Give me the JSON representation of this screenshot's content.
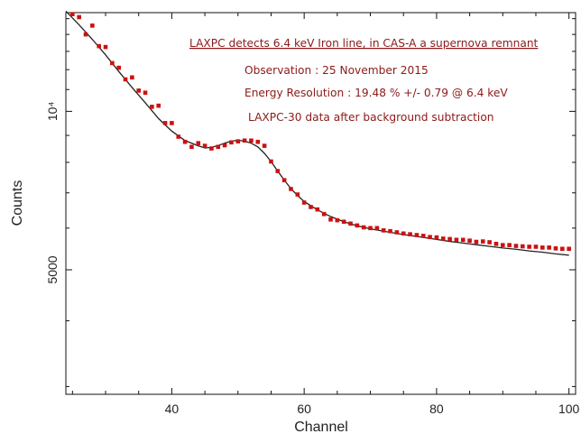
{
  "chart_data": {
    "type": "scatter",
    "xlabel": "Channel",
    "ylabel": "Counts",
    "xlim": [
      24,
      101
    ],
    "ylim": [
      2900,
      15400
    ],
    "x_ticks": [
      {
        "value": 40,
        "label": "40"
      },
      {
        "value": 60,
        "label": "60"
      },
      {
        "value": 80,
        "label": "80"
      },
      {
        "value": 100,
        "label": "100"
      }
    ],
    "y_ticks": [
      {
        "value": 5000,
        "label": "5000"
      },
      {
        "value": 10000,
        "label": "10⁴"
      }
    ],
    "annotations": {
      "title": "LAXPC detects 6.4 keV Iron line, in CAS-A a supernova remnant",
      "line1": "Observation : 25 November 2015",
      "line2": "Energy Resolution : 19.48 %  +/- 0.79 @ 6.4 keV",
      "line3": "LAXPC-30 data after background subtraction"
    },
    "colors": {
      "data_points": "#cc1111",
      "model_curve": "#222222",
      "annotation_text": "#8b1a1a"
    },
    "series": [
      {
        "style": "points",
        "x": [
          25,
          26,
          27,
          28,
          29,
          30,
          31,
          32,
          33,
          34,
          35,
          36,
          37,
          38,
          39,
          40,
          41,
          42,
          43,
          44,
          45,
          46,
          47,
          48,
          49,
          50,
          51,
          52,
          53,
          54,
          55,
          56,
          57,
          58,
          59,
          60,
          61,
          62,
          63,
          64,
          65,
          66,
          67,
          68,
          69,
          70,
          71,
          72,
          73,
          74,
          75,
          76,
          77,
          78,
          79,
          80,
          81,
          82,
          83,
          84,
          85,
          86,
          87,
          88,
          89,
          90,
          91,
          92,
          93,
          94,
          95,
          96,
          97,
          98,
          99,
          100
        ],
        "y": [
          15300,
          15100,
          14000,
          14550,
          13300,
          13250,
          12350,
          12100,
          11500,
          11600,
          10950,
          10850,
          10200,
          10250,
          9500,
          9500,
          8950,
          8750,
          8560,
          8700,
          8600,
          8500,
          8560,
          8620,
          8730,
          8770,
          8800,
          8800,
          8750,
          8600,
          8030,
          7700,
          7400,
          7120,
          6950,
          6710,
          6580,
          6510,
          6380,
          6230,
          6210,
          6170,
          6120,
          6070,
          6020,
          6000,
          6000,
          5940,
          5920,
          5890,
          5860,
          5840,
          5820,
          5800,
          5770,
          5760,
          5730,
          5720,
          5700,
          5700,
          5680,
          5650,
          5660,
          5640,
          5600,
          5570,
          5570,
          5550,
          5540,
          5530,
          5530,
          5510,
          5510,
          5490,
          5480,
          5480
        ]
      },
      {
        "style": "line",
        "x": [
          24,
          26,
          28,
          30,
          32,
          34,
          36,
          38,
          40,
          42,
          44,
          45,
          46,
          47,
          48,
          49,
          50,
          51,
          52,
          53,
          54,
          55,
          56,
          57,
          58,
          59,
          60,
          62,
          64,
          66,
          68,
          70,
          72,
          74,
          76,
          78,
          80,
          82,
          84,
          86,
          88,
          90,
          92,
          94,
          96,
          98,
          100
        ],
        "y": [
          15500,
          14600,
          13700,
          12800,
          11900,
          11100,
          10380,
          9690,
          9170,
          8800,
          8600,
          8520,
          8540,
          8610,
          8700,
          8780,
          8810,
          8780,
          8700,
          8560,
          8320,
          8030,
          7700,
          7400,
          7130,
          6920,
          6740,
          6500,
          6310,
          6170,
          6060,
          5980,
          5920,
          5860,
          5810,
          5760,
          5710,
          5660,
          5620,
          5580,
          5540,
          5500,
          5470,
          5430,
          5400,
          5360,
          5330
        ]
      }
    ]
  }
}
